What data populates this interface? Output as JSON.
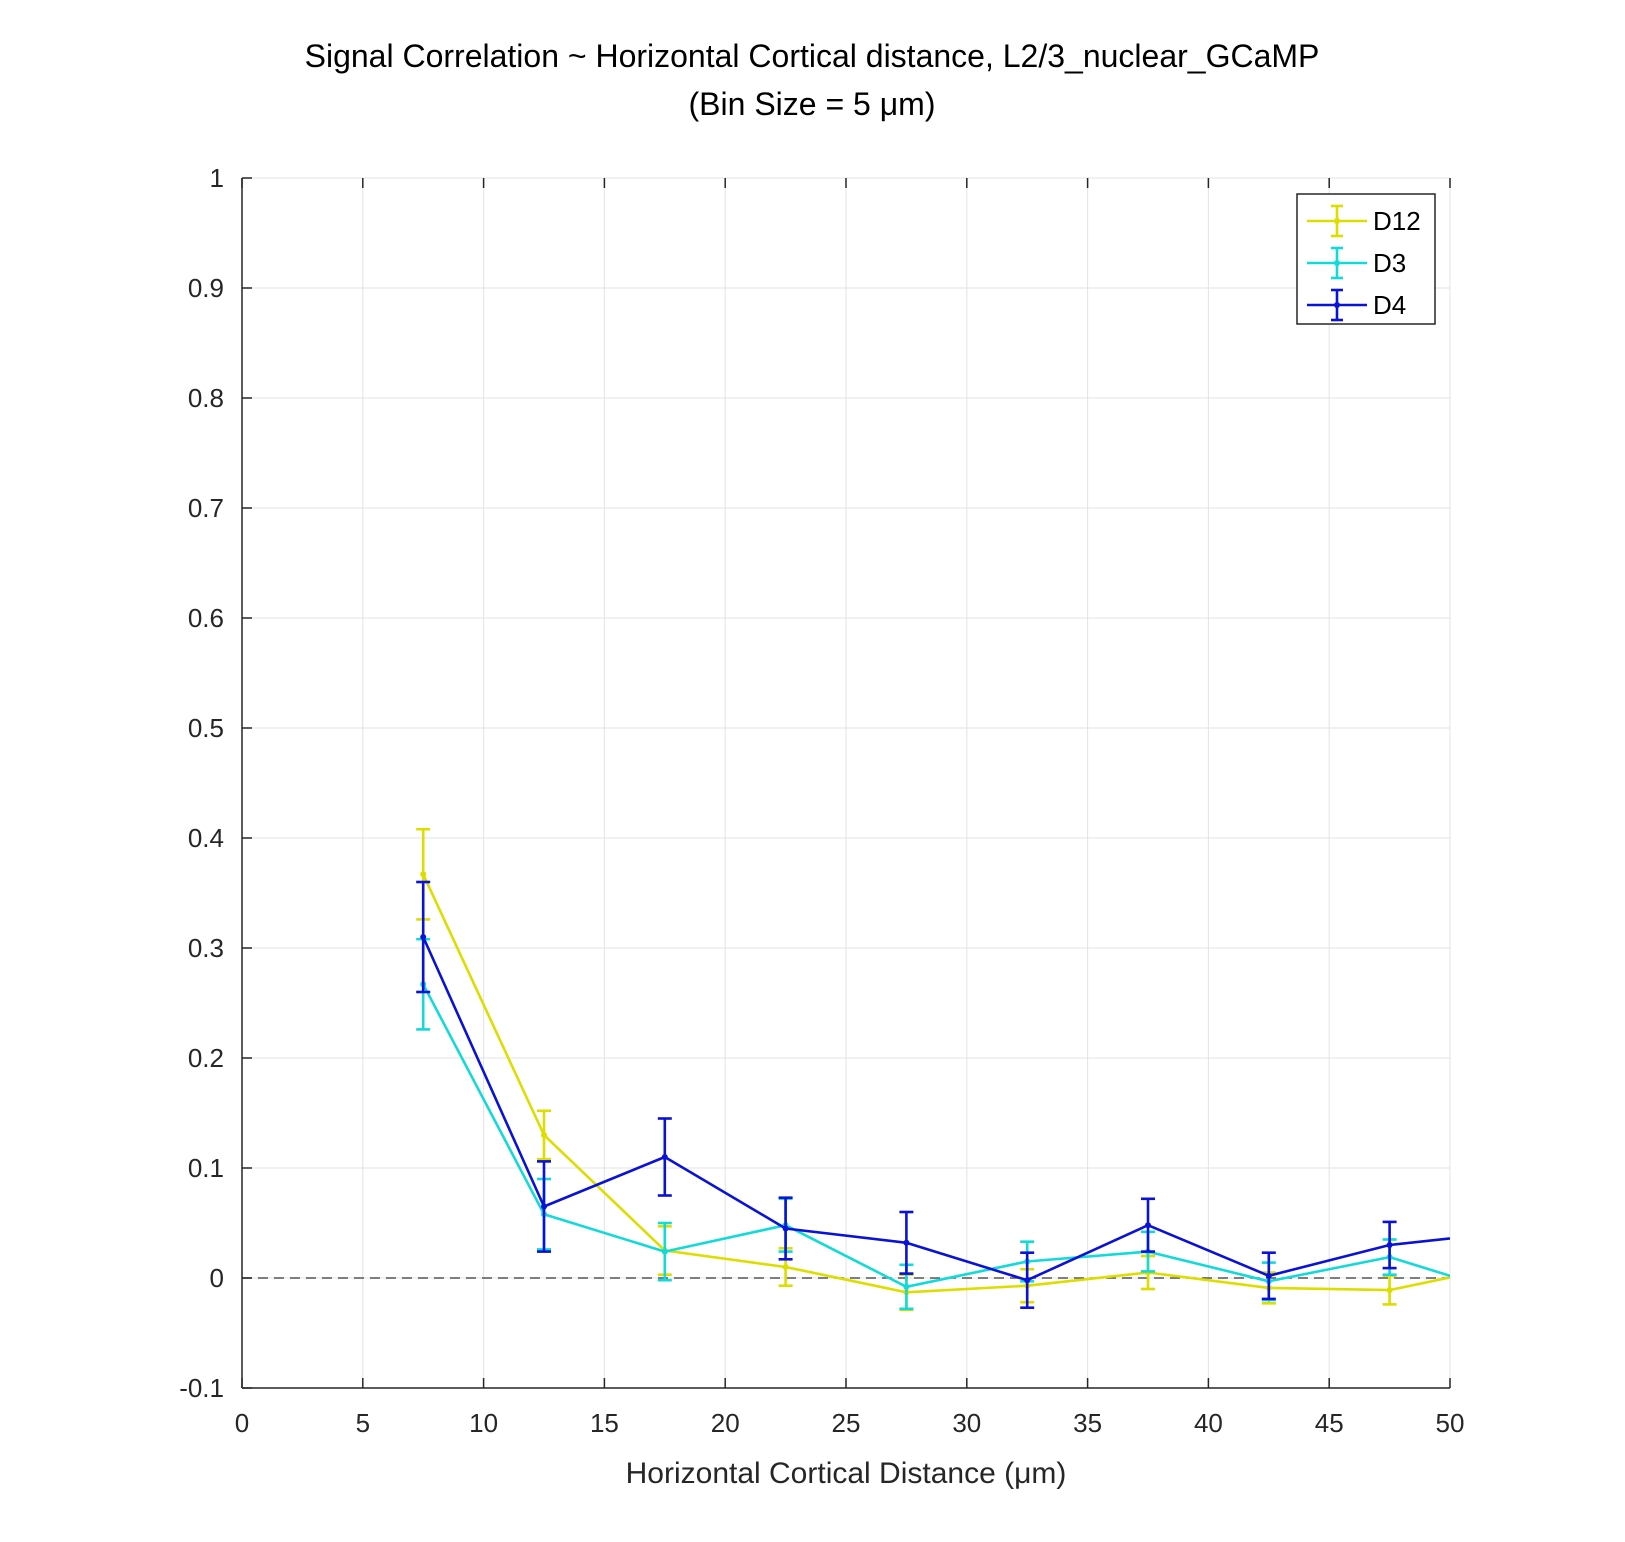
{
  "chart_data": {
    "type": "line",
    "title": "Signal Correlation ~ Horizontal Cortical distance, L2/3_nuclear_GCaMP",
    "subtitle": "(Bin Size = 5 μm)",
    "xlabel": "Horizontal Cortical Distance (μm)",
    "ylabel": "",
    "xlim": [
      0,
      50
    ],
    "ylim": [
      -0.1,
      1
    ],
    "xticks": [
      0,
      5,
      10,
      15,
      20,
      25,
      30,
      35,
      40,
      45,
      50
    ],
    "yticks": [
      -0.1,
      0,
      0.1,
      0.2,
      0.3,
      0.4,
      0.5,
      0.6,
      0.7,
      0.8,
      0.9,
      1
    ],
    "ytick_labels": [
      "-0.1",
      "0",
      "0.1",
      "0.2",
      "0.3",
      "0.4",
      "0.5",
      "0.6",
      "0.7",
      "0.8",
      "0.9",
      "1"
    ],
    "grid": true,
    "legend_position": "top-right",
    "reference_line": {
      "y": 0,
      "style": "dashed"
    },
    "series": [
      {
        "name": "D12",
        "color": "#DDDD00",
        "x": [
          7.5,
          12.5,
          17.5,
          22.5,
          27.5,
          32.5,
          37.5,
          42.5,
          47.5,
          52.5
        ],
        "y": [
          0.367,
          0.13,
          0.025,
          0.01,
          -0.013,
          -0.007,
          0.005,
          -0.009,
          -0.011,
          0.012
        ],
        "err": [
          0.041,
          0.022,
          0.022,
          0.017,
          0.016,
          0.015,
          0.015,
          0.014,
          0.013,
          0.012
        ]
      },
      {
        "name": "D3",
        "color": "#14D9D9",
        "x": [
          7.5,
          12.5,
          17.5,
          22.5,
          27.5,
          32.5,
          37.5,
          42.5,
          47.5,
          52.5
        ],
        "y": [
          0.267,
          0.058,
          0.024,
          0.048,
          -0.008,
          0.015,
          0.024,
          -0.003,
          0.019,
          -0.015
        ],
        "err": [
          0.041,
          0.032,
          0.026,
          0.024,
          0.02,
          0.018,
          0.018,
          0.017,
          0.016,
          0.015
        ]
      },
      {
        "name": "D4",
        "color": "#0A12D6",
        "x": [
          7.5,
          12.5,
          17.5,
          22.5,
          27.5,
          32.5,
          37.5,
          42.5,
          47.5,
          52.5
        ],
        "y": [
          0.31,
          0.065,
          0.11,
          0.045,
          0.032,
          -0.002,
          0.048,
          0.002,
          0.03,
          0.042
        ],
        "err": [
          0.05,
          0.041,
          0.035,
          0.028,
          0.028,
          0.025,
          0.024,
          0.021,
          0.021,
          0.02
        ]
      }
    ]
  }
}
